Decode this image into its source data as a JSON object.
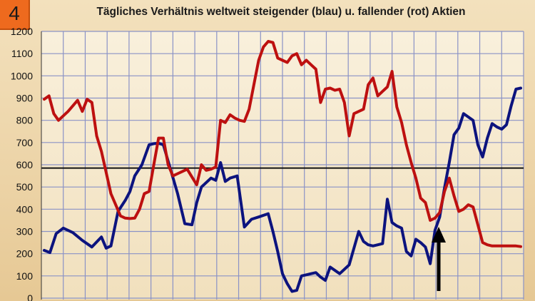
{
  "badge": "4",
  "chart_data": {
    "type": "line",
    "title": "Tägliches Verhältnis weltweit steigender (blau) u. fallender (rot) Aktien",
    "xlabel": "",
    "ylabel": "",
    "ylim": [
      0,
      1200
    ],
    "yticks": [
      0,
      100,
      200,
      300,
      400,
      500,
      600,
      700,
      800,
      900,
      1000,
      1100,
      1200
    ],
    "grid": true,
    "reference_line": 585,
    "annotation": "arrow pointing up at crossover",
    "series": [
      {
        "color": "#0c137e",
        "x": [
          0,
          1.2,
          2.5,
          4,
          6,
          8,
          10,
          12,
          13,
          14,
          15.5,
          17,
          18,
          19,
          20.5,
          22,
          23,
          24,
          25,
          26.5,
          28,
          29.5,
          31,
          32,
          33,
          34,
          35,
          36,
          37,
          38,
          39,
          40.5,
          42,
          43.5,
          45,
          47,
          48,
          49,
          50,
          51,
          52,
          53,
          54,
          55,
          56,
          57,
          58,
          59,
          60,
          62,
          64,
          66,
          67,
          68,
          69,
          70,
          71,
          72,
          73,
          74,
          75,
          76,
          77,
          78,
          79,
          80,
          81,
          82,
          83,
          84,
          85,
          86,
          87,
          88,
          89,
          90,
          91,
          92,
          93,
          94,
          95,
          96,
          97,
          98,
          99,
          100
        ],
        "values": [
          215,
          205,
          290,
          315,
          295,
          260,
          230,
          275,
          225,
          235,
          390,
          440,
          480,
          550,
          600,
          690,
          695,
          697,
          690,
          580,
          470,
          335,
          330,
          430,
          500,
          520,
          540,
          530,
          610,
          525,
          540,
          550,
          320,
          355,
          365,
          380,
          300,
          210,
          110,
          65,
          30,
          35,
          100,
          105,
          110,
          115,
          95,
          80,
          140,
          110,
          150,
          300,
          255,
          240,
          235,
          240,
          245,
          445,
          340,
          325,
          315,
          210,
          190,
          265,
          250,
          230,
          155,
          305,
          365,
          495,
          610,
          735,
          765,
          830,
          815,
          800,
          690,
          635,
          720,
          785,
          770,
          760,
          780,
          865,
          940,
          945
        ]
      },
      {
        "color": "#bd1010",
        "x": [
          0,
          1,
          2,
          3,
          5,
          7,
          8,
          9,
          10,
          11,
          12,
          14,
          16,
          17,
          18,
          19,
          20,
          21,
          22,
          23,
          24,
          25,
          26,
          27,
          28,
          30,
          32,
          33,
          34,
          35,
          36,
          37,
          38,
          39,
          40,
          41,
          42,
          43,
          45,
          46,
          47,
          48,
          49,
          50,
          51,
          52,
          53,
          54,
          55,
          56,
          57,
          58,
          59,
          60,
          61,
          62,
          63,
          64,
          65,
          66,
          67,
          68,
          69,
          70,
          71,
          72,
          73,
          74,
          75,
          76,
          77,
          78,
          79,
          80,
          81,
          82,
          83,
          84,
          85,
          86,
          87,
          88,
          89,
          90,
          91,
          92,
          93,
          94,
          95,
          96,
          97,
          98,
          99,
          100
        ],
        "values": [
          895,
          910,
          830,
          800,
          840,
          890,
          840,
          895,
          880,
          730,
          660,
          470,
          370,
          360,
          358,
          360,
          400,
          470,
          480,
          600,
          720,
          720,
          600,
          550,
          560,
          580,
          510,
          600,
          575,
          580,
          590,
          800,
          790,
          825,
          810,
          800,
          795,
          850,
          1070,
          1130,
          1155,
          1150,
          1080,
          1070,
          1060,
          1090,
          1100,
          1050,
          1070,
          1050,
          1030,
          880,
          940,
          945,
          935,
          940,
          880,
          730,
          830,
          840,
          850,
          960,
          990,
          910,
          930,
          950,
          1020,
          860,
          790,
          690,
          610,
          540,
          450,
          430,
          350,
          360,
          385,
          480,
          540,
          460,
          390,
          400,
          420,
          410,
          330,
          250,
          240,
          235,
          235,
          235,
          235,
          235,
          235,
          232
        ]
      }
    ]
  }
}
